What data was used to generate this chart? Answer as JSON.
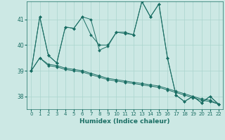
{
  "xlabel": "Humidex (Indice chaleur)",
  "bg_color": "#cce8e4",
  "line_color": "#1a6e64",
  "grid_color": "#aad4ce",
  "x_data": [
    0,
    1,
    2,
    3,
    4,
    5,
    6,
    7,
    8,
    9,
    10,
    11,
    12,
    13,
    14,
    15,
    16,
    17,
    18,
    19,
    20,
    21,
    22
  ],
  "series": [
    [
      39.0,
      41.1,
      39.6,
      39.3,
      40.7,
      40.65,
      41.1,
      41.0,
      39.8,
      39.95,
      40.5,
      40.45,
      40.4,
      41.7,
      41.1,
      41.6,
      39.5,
      38.05,
      37.8,
      38.0,
      37.75,
      38.0,
      37.7
    ],
    [
      39.0,
      41.1,
      39.6,
      39.3,
      40.7,
      40.65,
      41.1,
      40.4,
      40.0,
      40.0,
      40.5,
      40.5,
      40.4,
      41.7,
      41.1,
      41.6,
      39.5,
      38.05,
      37.8,
      38.0,
      37.75,
      38.0,
      37.7
    ],
    [
      39.0,
      39.5,
      39.25,
      39.2,
      39.1,
      39.05,
      39.0,
      38.9,
      38.8,
      38.7,
      38.65,
      38.6,
      38.55,
      38.5,
      38.45,
      38.4,
      38.3,
      38.2,
      38.1,
      38.0,
      37.9,
      37.85,
      37.7
    ],
    [
      39.0,
      39.5,
      39.2,
      39.15,
      39.05,
      39.0,
      38.95,
      38.85,
      38.75,
      38.65,
      38.6,
      38.55,
      38.5,
      38.45,
      38.4,
      38.35,
      38.25,
      38.15,
      38.05,
      37.95,
      37.85,
      37.8,
      37.7
    ]
  ],
  "ylim": [
    37.5,
    41.7
  ],
  "yticks": [
    38,
    39,
    40,
    41
  ],
  "xticks": [
    0,
    1,
    2,
    3,
    4,
    5,
    6,
    7,
    8,
    9,
    10,
    11,
    12,
    13,
    14,
    15,
    16,
    17,
    18,
    19,
    20,
    21,
    22
  ]
}
